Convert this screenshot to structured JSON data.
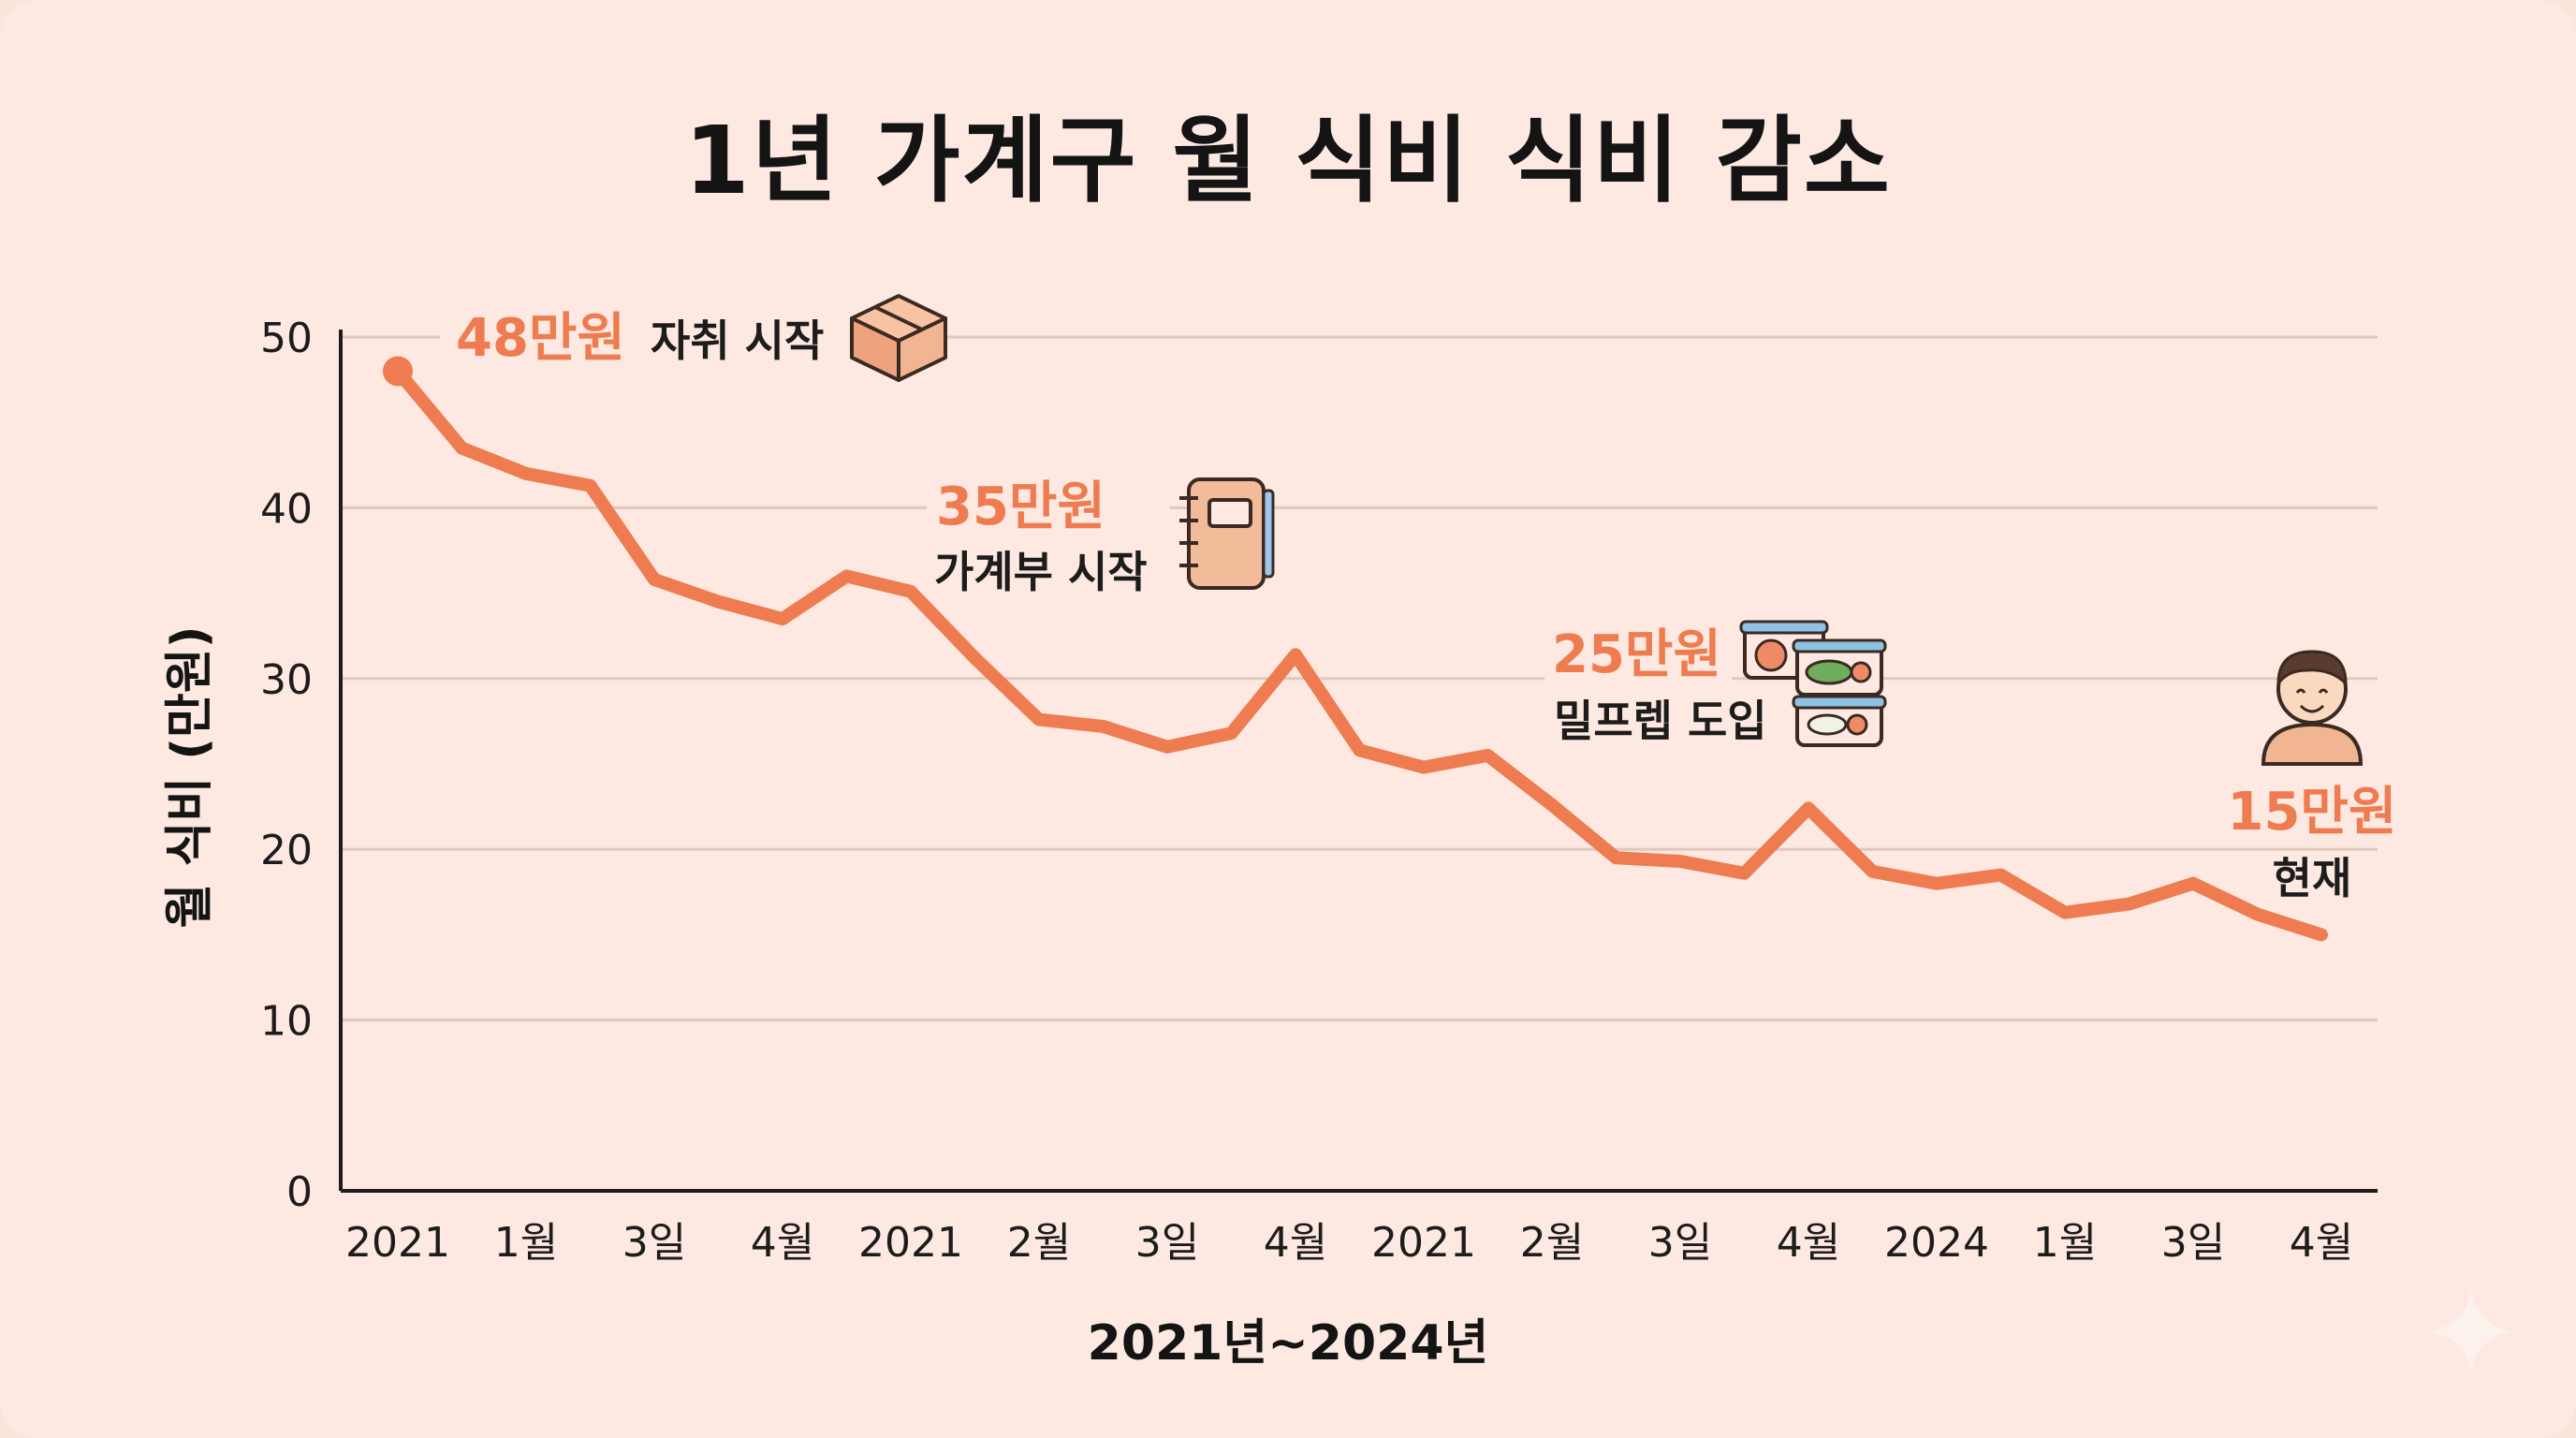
{
  "chart_data": {
    "type": "line",
    "title": "1년 가계구 월 식비 식비 감소",
    "xlabel": "2021년~2024년",
    "ylabel": "월 식비 (만원)",
    "ylim": [
      0,
      50
    ],
    "yticks": [
      0,
      10,
      20,
      30,
      40,
      50
    ],
    "grid": true,
    "categories": [
      "2021",
      "1월",
      "3일",
      "4월",
      "2021",
      "2월",
      "3일",
      "4월",
      "2021",
      "2월",
      "3일",
      "4월",
      "2024",
      "1월",
      "3일",
      "4월"
    ],
    "x": [
      0,
      0.5,
      1,
      1.5,
      2,
      2.5,
      3,
      3.5,
      4,
      4.5,
      5,
      5.5,
      6,
      6.5,
      7,
      7.5,
      8,
      8.5,
      9,
      9.5,
      10,
      10.5,
      11,
      11.5,
      12,
      12.5,
      13,
      13.5,
      14,
      14.5,
      15
    ],
    "series": [
      {
        "color": "#ee7c50",
        "values": [
          48,
          43.5,
          42,
          41.3,
          35.8,
          34.5,
          33.5,
          36,
          35.1,
          31.2,
          27.6,
          27.2,
          26,
          26.8,
          31.4,
          25.8,
          24.8,
          25.5,
          22.6,
          19.5,
          19.3,
          18.6,
          22.4,
          18.7,
          18,
          18.5,
          16.3,
          16.8,
          18,
          16.2,
          15
        ]
      }
    ],
    "annotations": [
      {
        "value": "48만원",
        "text": "자취 시작",
        "icon": "box-icon"
      },
      {
        "value": "35만원",
        "text": "가계부 시작",
        "icon": "notebook-icon"
      },
      {
        "value": "25만원",
        "text": "밀프렙 도입",
        "icon": "meal-container-icon"
      },
      {
        "value": "15만원",
        "text": "현재",
        "icon": "person-icon"
      }
    ]
  },
  "decor": {
    "icon": "sparkle-icon"
  }
}
